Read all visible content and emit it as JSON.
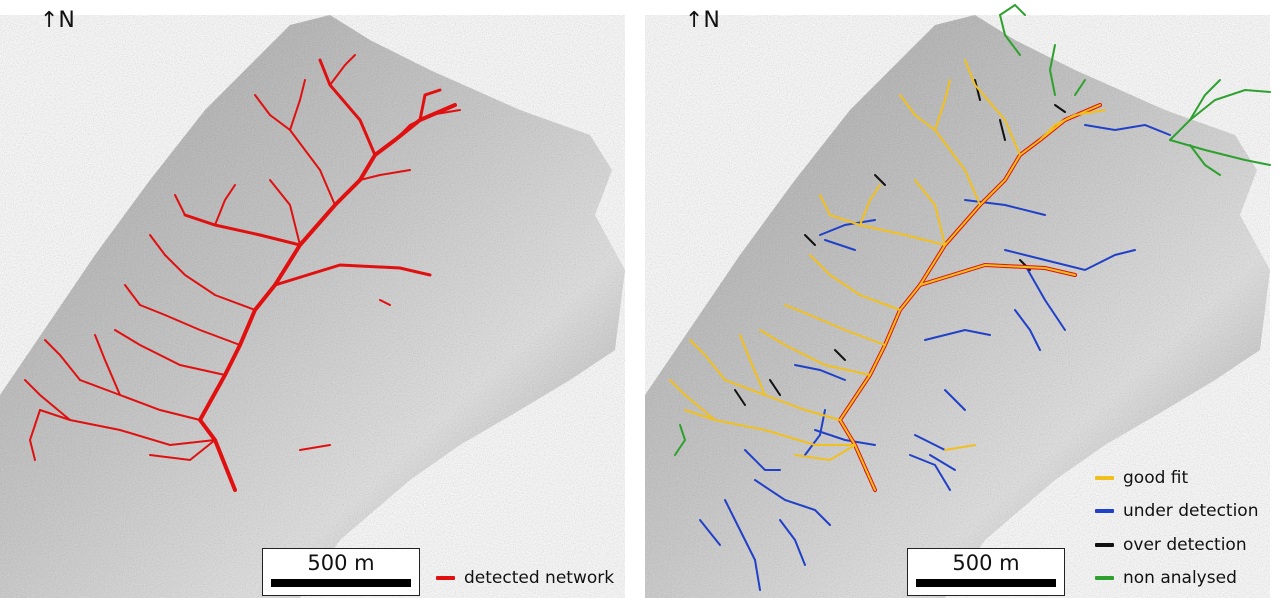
{
  "north_label": "↑N",
  "scalebar_label": "500 m",
  "left_legend": {
    "label": "detected network",
    "color": "#e01010"
  },
  "right_legend": [
    {
      "label": "good fit",
      "color": "#f2c01e"
    },
    {
      "label": "under detection",
      "color": "#2040c8"
    },
    {
      "label": "over detection",
      "color": "#111111"
    },
    {
      "label": "non analysed",
      "color": "#2ea02e"
    }
  ],
  "colors": {
    "terrain_dark": "#4a4a4a",
    "terrain_light": "#d9d9d9"
  }
}
